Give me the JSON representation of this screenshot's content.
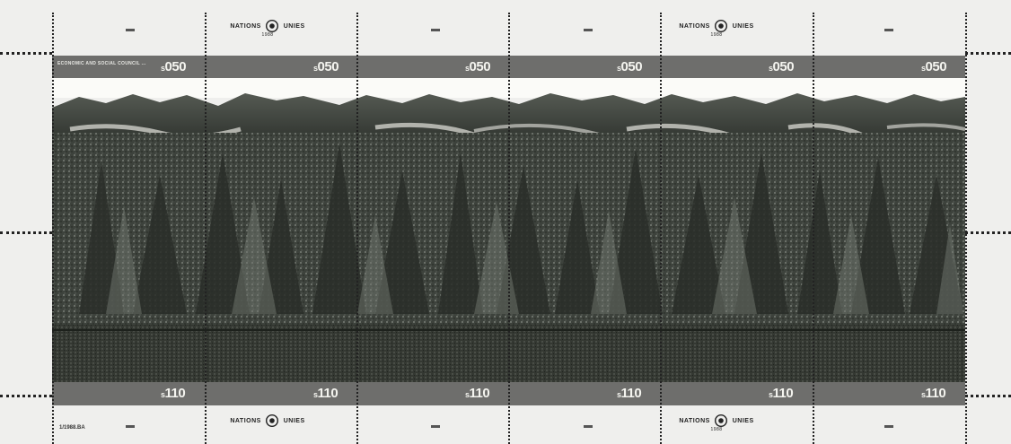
{
  "sheet": {
    "emblem_text_left": "NATIONS",
    "emblem_text_right": "UNIES",
    "emblem_year": "1988",
    "sheet_number": "1/1988.BA"
  },
  "stamps_top": [
    {
      "text": "ECONOMIC AND SOCIAL COUNCIL ...",
      "denomination": "050",
      "currency_symbol": "s"
    },
    {
      "text": "",
      "denomination": "050",
      "currency_symbol": "s"
    },
    {
      "text": "",
      "denomination": "050",
      "currency_symbol": "s"
    },
    {
      "text": "",
      "denomination": "050",
      "currency_symbol": "s"
    },
    {
      "text": "",
      "denomination": "050",
      "currency_symbol": "s"
    },
    {
      "text": "",
      "denomination": "050",
      "currency_symbol": "s"
    }
  ],
  "stamps_bottom": [
    {
      "text": "",
      "denomination": "110",
      "currency_symbol": "s"
    },
    {
      "text": "",
      "denomination": "110",
      "currency_symbol": "s"
    },
    {
      "text": "",
      "denomination": "110",
      "currency_symbol": "s"
    },
    {
      "text": "",
      "denomination": "110",
      "currency_symbol": "s"
    },
    {
      "text": "",
      "denomination": "110",
      "currency_symbol": "s"
    },
    {
      "text": "",
      "denomination": "110",
      "currency_symbol": "s"
    }
  ],
  "colors": {
    "paper": "#efefed",
    "band": "#6e6e6c",
    "forest_dark": "#2b2f2b",
    "forest_mid": "#4a4f49",
    "sky": "#fbfbf8"
  },
  "icons": [
    "un-emblem-icon"
  ]
}
